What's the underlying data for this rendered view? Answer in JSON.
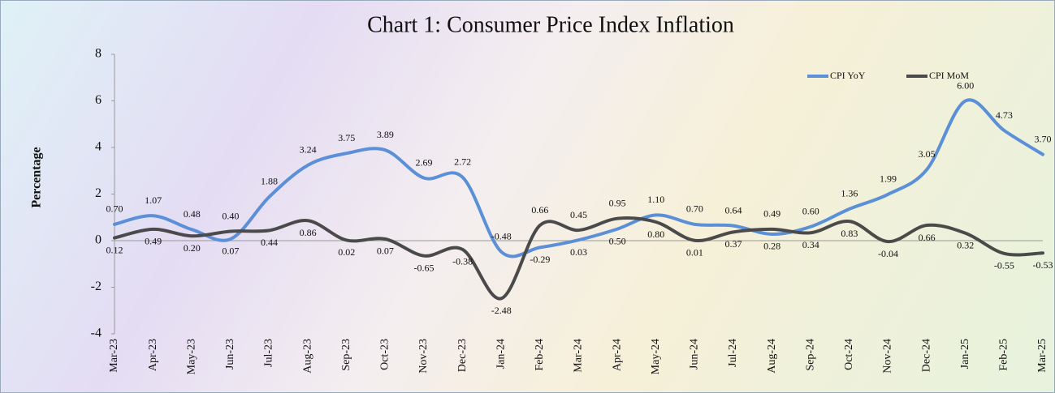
{
  "chart_data": {
    "type": "line",
    "title": "Chart 1: Consumer Price Index Inflation",
    "y_label": "Percentage",
    "categories": [
      "Mar-23",
      "Apr-23",
      "May-23",
      "Jun-23",
      "Jul-23",
      "Aug-23",
      "Sep-23",
      "Oct-23",
      "Nov-23",
      "Dec-23",
      "Jan-24",
      "Feb-24",
      "Mar-24",
      "Apr-24",
      "May-24",
      "Jun-24",
      "Jul-24",
      "Aug-24",
      "Sep-24",
      "Oct-24",
      "Nov-24",
      "Dec-24",
      "Jan-25",
      "Feb-25",
      "Mar-25"
    ],
    "series": [
      {
        "name": "CPI YoY",
        "color": "#5b8fd8",
        "values": [
          0.7,
          1.07,
          0.48,
          0.07,
          1.88,
          3.24,
          3.75,
          3.89,
          2.69,
          2.72,
          -0.48,
          -0.29,
          0.03,
          0.5,
          1.1,
          0.7,
          0.64,
          0.28,
          0.6,
          1.36,
          1.99,
          3.05,
          6,
          4.73,
          3.7
        ],
        "value_labels": [
          "0.70",
          "1.07",
          "0.48",
          "0.07",
          "1.88",
          "3.24",
          "3.75",
          "3.89",
          "2.69",
          "2.72",
          "-0.48",
          "-0.29",
          "0.03",
          "0.50",
          "1.10",
          "0.70",
          "0.64",
          "0.28",
          "0.60",
          "1.36",
          "1.99",
          "3.05",
          "6.00",
          "4.73",
          "3.70"
        ]
      },
      {
        "name": "CPI MoM",
        "color": "#4a4a4a",
        "values": [
          0.12,
          0.49,
          0.2,
          0.4,
          0.44,
          0.86,
          0.02,
          0.07,
          -0.65,
          -0.38,
          -2.48,
          0.66,
          0.45,
          0.95,
          0.8,
          0.01,
          0.37,
          0.49,
          0.34,
          0.83,
          -0.04,
          0.66,
          0.32,
          -0.55,
          -0.53
        ],
        "value_labels": [
          "0.12",
          "0.49",
          "0.20",
          "0.40",
          "0.44",
          "0.86",
          "0.02",
          "0.07",
          "-0.65",
          "-0.38",
          "-2.48",
          "0.66",
          "0.45",
          "0.95",
          "0.80",
          "0.01",
          "0.37",
          "0.49",
          "0.34",
          "0.83",
          "-0.04",
          "0.66",
          "0.32",
          "-0.55",
          "-0.53"
        ]
      }
    ],
    "ylim": [
      -4,
      8
    ],
    "yticks": [
      -4,
      -2,
      0,
      2,
      4,
      6,
      8
    ],
    "legend": "top-right"
  }
}
